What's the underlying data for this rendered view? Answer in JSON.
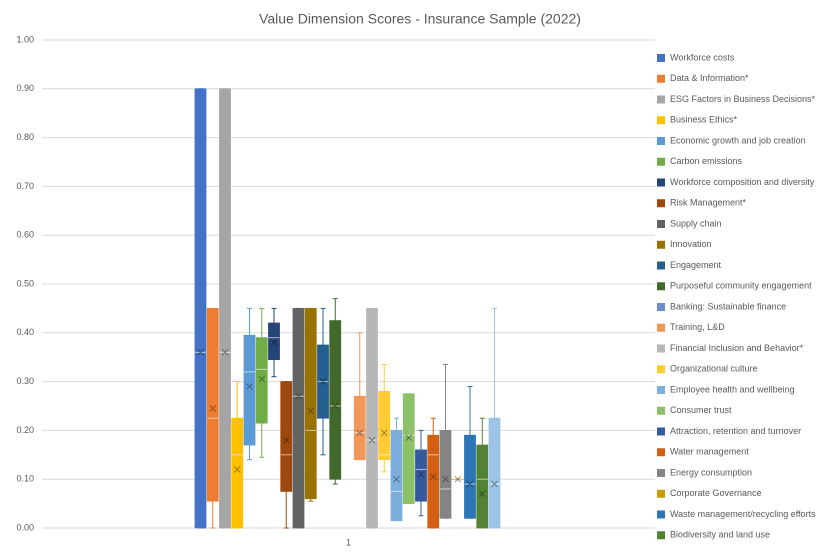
{
  "chart_data": {
    "type": "boxplot",
    "title": "Value Dimension Scores - Insurance Sample (2022)",
    "categories": [
      "1"
    ],
    "ylim": [
      0,
      1
    ],
    "yticks": [
      {
        "value": 0,
        "label": "0.00"
      },
      {
        "value": 0.1,
        "label": "0.10"
      },
      {
        "value": 0.2,
        "label": "0.20"
      },
      {
        "value": 0.3,
        "label": "0.30"
      },
      {
        "value": 0.4,
        "label": "0.40"
      },
      {
        "value": 0.5,
        "label": "0.50"
      },
      {
        "value": 0.6,
        "label": "0.60"
      },
      {
        "value": 0.7,
        "label": "0.70"
      },
      {
        "value": 0.8,
        "label": "0.80"
      },
      {
        "value": 0.9,
        "label": "0.90"
      },
      {
        "value": 1,
        "label": "1.00"
      }
    ],
    "grid": true,
    "series": [
      {
        "name": "Workforce costs",
        "color": "#4472c4",
        "min": 0,
        "q1": 0,
        "median": 0.36,
        "q3": 0.9,
        "max": 0.9,
        "mean": 0.36
      },
      {
        "name": "Data & Information*",
        "color": "#ed7d31",
        "min": 0,
        "q1": 0.055,
        "median": 0.225,
        "q3": 0.45,
        "max": 0.45,
        "mean": 0.245
      },
      {
        "name": "ESG Factors in Business Decisions*",
        "color": "#a5a5a5",
        "min": 0,
        "q1": 0,
        "median": 0.36,
        "q3": 0.9,
        "max": 0.9,
        "mean": 0.36
      },
      {
        "name": "Business Ethics*",
        "color": "#ffc000",
        "min": 0,
        "q1": 0,
        "median": 0.15,
        "q3": 0.225,
        "max": 0.3,
        "mean": 0.12
      },
      {
        "name": "Economic growth and job creation",
        "color": "#5b9bd5",
        "min": 0.14,
        "q1": 0.17,
        "median": 0.32,
        "q3": 0.395,
        "max": 0.45,
        "mean": 0.29
      },
      {
        "name": "Carbon emissions",
        "color": "#70ad47",
        "min": 0.145,
        "q1": 0.215,
        "median": 0.325,
        "q3": 0.39,
        "max": 0.45,
        "mean": 0.305
      },
      {
        "name": "Workforce composition and diversity",
        "color": "#264478",
        "min": 0.31,
        "q1": 0.345,
        "median": 0.39,
        "q3": 0.42,
        "max": 0.45,
        "mean": 0.38
      },
      {
        "name": "Risk Management*",
        "color": "#9e480e",
        "min": 0,
        "q1": 0.075,
        "median": 0.15,
        "q3": 0.3,
        "max": 0.3,
        "mean": 0.18
      },
      {
        "name": "Supply chain",
        "color": "#636363",
        "min": 0,
        "q1": 0,
        "median": 0.27,
        "q3": 0.45,
        "max": 0.45,
        "mean": 0.27
      },
      {
        "name": "Innovation",
        "color": "#997300",
        "min": 0.055,
        "q1": 0.06,
        "median": 0.2,
        "q3": 0.45,
        "max": 0.45,
        "mean": 0.24
      },
      {
        "name": "Engagement",
        "color": "#255e91",
        "min": 0.15,
        "q1": 0.225,
        "median": 0.3,
        "q3": 0.375,
        "max": 0.45,
        "mean": 0.3
      },
      {
        "name": "Purposeful community engagement",
        "color": "#43682b",
        "min": 0.09,
        "q1": 0.1,
        "median": 0.25,
        "q3": 0.425,
        "max": 0.47,
        "mean": 0.25
      },
      {
        "name": "Banking: Sustainable finance",
        "color": "#698ed0",
        "min": null,
        "q1": null,
        "median": null,
        "q3": null,
        "max": null,
        "mean": null
      },
      {
        "name": "Training, L&D",
        "color": "#f1975a",
        "min": 0.14,
        "q1": 0.14,
        "median": 0.195,
        "q3": 0.27,
        "max": 0.4,
        "mean": 0.195
      },
      {
        "name": "Financial Inclusion and Behavior*",
        "color": "#b7b7b7",
        "min": 0,
        "q1": 0,
        "median": 0.18,
        "q3": 0.45,
        "max": 0.45,
        "mean": 0.18
      },
      {
        "name": "Organizational culture",
        "color": "#ffcd33",
        "min": 0.115,
        "q1": 0.14,
        "median": 0.15,
        "q3": 0.28,
        "max": 0.335,
        "mean": 0.195
      },
      {
        "name": "Employee health and wellbeing",
        "color": "#7cafdd",
        "min": 0.015,
        "q1": 0.015,
        "median": 0.075,
        "q3": 0.2,
        "max": 0.225,
        "mean": 0.1
      },
      {
        "name": "Consumer trust",
        "color": "#8cc168",
        "min": 0.05,
        "q1": 0.05,
        "median": 0.19,
        "q3": 0.275,
        "max": 0.275,
        "mean": 0.185
      },
      {
        "name": "Attraction, retention and turnover",
        "color": "#335aa1",
        "min": 0.025,
        "q1": 0.055,
        "median": 0.12,
        "q3": 0.16,
        "max": 0.2,
        "mean": 0.11
      },
      {
        "name": "Water management",
        "color": "#d26012",
        "min": 0,
        "q1": 0,
        "median": 0.15,
        "q3": 0.19,
        "max": 0.225,
        "mean": 0.105
      },
      {
        "name": "Energy consumption",
        "color": "#848484",
        "min": 0.02,
        "q1": 0.02,
        "median": 0.08,
        "q3": 0.2,
        "max": 0.335,
        "mean": 0.1
      },
      {
        "name": "Corporate Governance",
        "color": "#cc9a00",
        "min": 0.1,
        "q1": 0.1,
        "median": 0.1,
        "q3": 0.1,
        "max": 0.1,
        "mean": 0.1
      },
      {
        "name": "Waste management/recycling efforts",
        "color": "#2e75b6",
        "min": 0.02,
        "q1": 0.02,
        "median": 0.09,
        "q3": 0.19,
        "max": 0.29,
        "mean": 0.09
      },
      {
        "name": "Biodiversity and land use",
        "color": "#548235",
        "min": 0,
        "q1": 0,
        "median": 0.1,
        "q3": 0.17,
        "max": 0.225,
        "mean": 0.07
      },
      {
        "color": "#9dc3e6",
        "min": 0,
        "q1": 0,
        "median": 0.09,
        "q3": 0.225,
        "max": 0.45,
        "mean": 0.09
      }
    ]
  }
}
